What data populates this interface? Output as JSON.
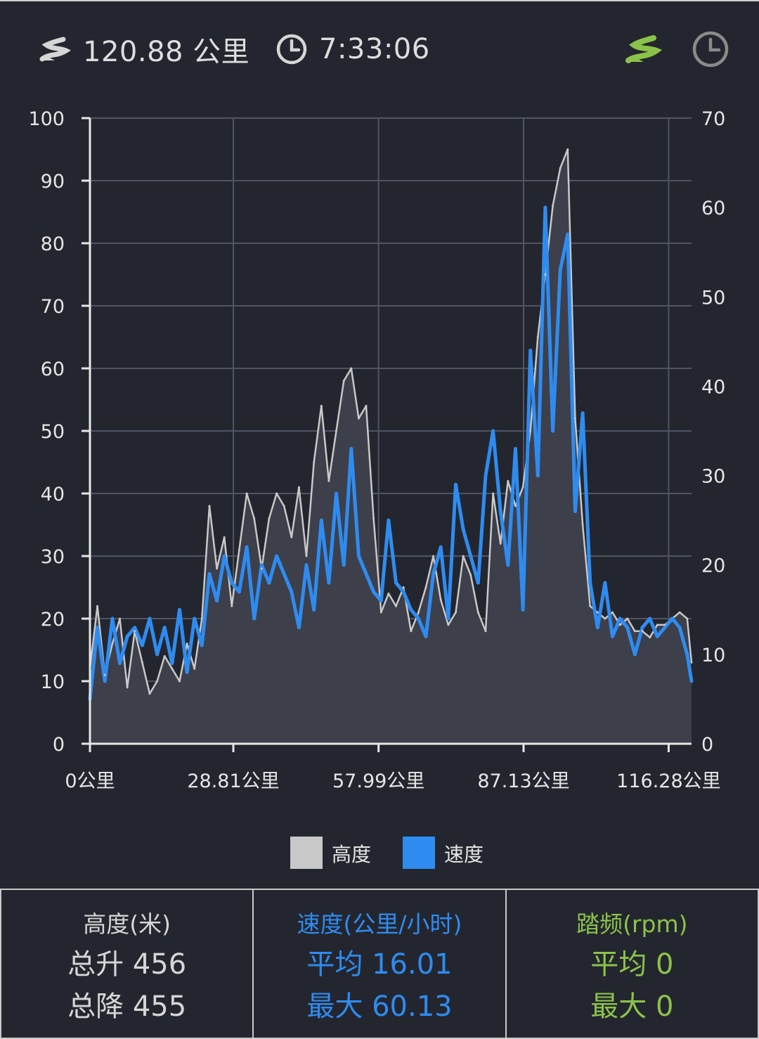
{
  "header": {
    "distance_text": "120.88 公里",
    "duration_text": "7:33:06",
    "icons": [
      "road-icon",
      "clock-icon",
      "road-mode-icon",
      "time-mode-icon"
    ]
  },
  "colors": {
    "background": "#24262f",
    "altitude": "#c8c8c8",
    "altitude_fill": "#3d3f4b",
    "speed": "#2e8cf0",
    "cadence": "#8bc34a",
    "grid": "#505463"
  },
  "chart_data": {
    "type": "line",
    "x": [
      0,
      1.5,
      3,
      4.5,
      6,
      7.5,
      9,
      10.5,
      12,
      13.5,
      15,
      16.5,
      18,
      19.5,
      21,
      22.5,
      24,
      25.5,
      27,
      28.5,
      30,
      31.5,
      33,
      34.5,
      36,
      37.5,
      39,
      40.5,
      42,
      43.5,
      45,
      46.5,
      48,
      49.5,
      51,
      52.5,
      54,
      55.5,
      57,
      58.5,
      60,
      61.5,
      63,
      64.5,
      66,
      67.5,
      69,
      70.5,
      72,
      73.5,
      75,
      76.5,
      78,
      79.5,
      81,
      82.5,
      84,
      85.5,
      87,
      88.5,
      90,
      91.5,
      93,
      94.5,
      96,
      97.5,
      99,
      100.5,
      102,
      103.5,
      105,
      106.5,
      108,
      109.5,
      111,
      112.5,
      114,
      115.5,
      117,
      118.5,
      120,
      120.88
    ],
    "series": [
      {
        "name": "高度",
        "axis": "left",
        "values": [
          12,
          22,
          11,
          16,
          20,
          9,
          18,
          13,
          8,
          10,
          14,
          12,
          10,
          16,
          12,
          20,
          38,
          28,
          33,
          22,
          31,
          40,
          36,
          28,
          36,
          40,
          38,
          33,
          41,
          30,
          45,
          54,
          42,
          50,
          58,
          60,
          52,
          54,
          36,
          21,
          24,
          22,
          25,
          18,
          21,
          25,
          30,
          23,
          19,
          21,
          30,
          27,
          21,
          18,
          40,
          32,
          42,
          38,
          41,
          50,
          65,
          75,
          86,
          92,
          95,
          52,
          35,
          22,
          21,
          20,
          21,
          19,
          20,
          18,
          18,
          17,
          19,
          19,
          20,
          21,
          20,
          13
        ]
      },
      {
        "name": "速度",
        "axis": "right",
        "values": [
          5,
          13,
          7,
          14,
          9,
          12,
          13,
          11,
          14,
          10,
          13,
          9,
          15,
          8,
          14,
          11,
          19,
          16,
          21,
          18,
          17,
          22,
          14,
          20,
          18,
          21,
          19,
          17,
          13,
          20,
          15,
          25,
          18,
          28,
          20,
          33,
          21,
          19,
          17,
          16,
          25,
          18,
          17,
          15,
          14,
          12,
          19,
          22,
          14,
          29,
          24,
          21,
          18,
          30,
          35,
          26,
          20,
          33,
          15,
          44,
          30,
          60,
          35,
          53,
          57,
          26,
          37,
          18,
          13,
          18,
          12,
          14,
          13,
          10,
          13,
          14,
          12,
          13,
          14,
          13,
          10,
          7
        ]
      }
    ],
    "y_left": {
      "min": 0,
      "max": 100,
      "ticks": [
        0,
        10,
        20,
        30,
        40,
        50,
        60,
        70,
        80,
        90,
        100
      ]
    },
    "y_right": {
      "min": 0,
      "max": 70,
      "ticks": [
        0,
        10,
        20,
        30,
        40,
        50,
        60,
        70
      ]
    },
    "xlim": [
      0,
      120.88
    ],
    "x_ticks": [
      {
        "value": 0,
        "label": "0公里"
      },
      {
        "value": 28.81,
        "label": "28.81公里"
      },
      {
        "value": 57.99,
        "label": "57.99公里"
      },
      {
        "value": 87.13,
        "label": "87.13公里"
      },
      {
        "value": 116.28,
        "label": "116.28公里"
      }
    ],
    "grid": true,
    "legend_position": "bottom-center"
  },
  "stats": {
    "altitude": {
      "title": "高度(米)",
      "line1": "总升 456",
      "line2": "总降 455"
    },
    "speed": {
      "title": "速度(公里/小时)",
      "line1": "平均 16.01",
      "line2": "最大 60.13"
    },
    "cadence": {
      "title": "踏频(rpm)",
      "line1": "平均 0",
      "line2": "最大 0"
    }
  }
}
